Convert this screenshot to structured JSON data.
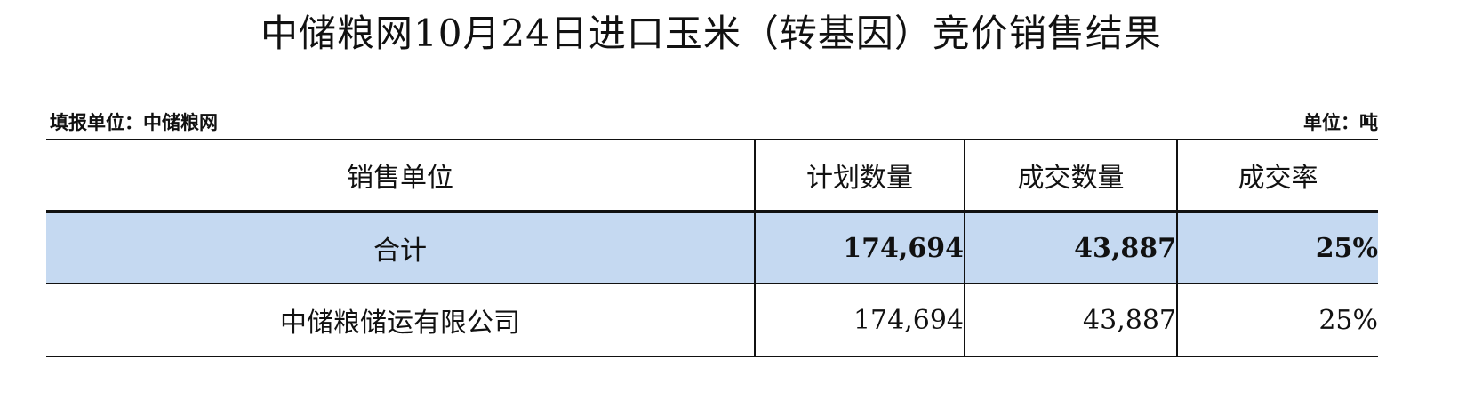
{
  "title": "中储粮网10月24日进口玉米（转基因）竞价销售结果",
  "reporter": "填报单位：中储粮网",
  "unit": "单位：吨",
  "colors": {
    "total_row_bg": "#c5d9f1"
  },
  "table": {
    "headers": [
      "销售单位",
      "计划数量",
      "成交数量",
      "成交率"
    ],
    "total": {
      "name": "合计",
      "planned": "174,694",
      "traded": "43,887",
      "rate": "25%"
    },
    "rows": [
      {
        "name": "中储粮储运有限公司",
        "planned": "174,694",
        "traded": "43,887",
        "rate": "25%"
      }
    ]
  }
}
